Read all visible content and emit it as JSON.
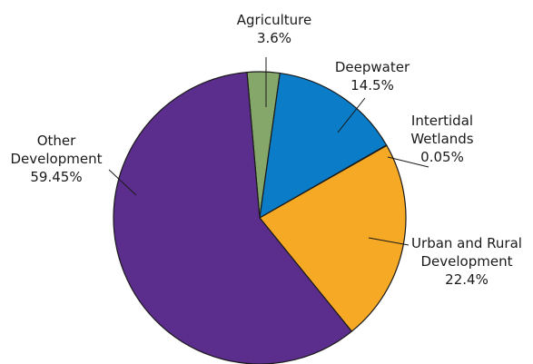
{
  "chart_data": {
    "type": "pie",
    "title": "",
    "slices": [
      {
        "name": "Agriculture",
        "label_lines": [
          "Agriculture",
          "3.6%"
        ],
        "value": 3.6,
        "color": "#85a86a"
      },
      {
        "name": "Deepwater",
        "label_lines": [
          "Deepwater",
          "14.5%"
        ],
        "value": 14.5,
        "color": "#0a7cc8"
      },
      {
        "name": "Intertidal Wetlands",
        "label_lines": [
          "Intertidal",
          "Wetlands",
          "0.05%"
        ],
        "value": 0.05,
        "color": "#cc3333"
      },
      {
        "name": "Urban and Rural Development",
        "label_lines": [
          "Urban and Rural",
          "Development",
          "22.4%"
        ],
        "value": 22.4,
        "color": "#f6a925"
      },
      {
        "name": "Other Development",
        "label_lines": [
          "Other",
          "Development",
          "59.45%"
        ],
        "value": 59.45,
        "color": "#5b2d8c"
      }
    ]
  }
}
